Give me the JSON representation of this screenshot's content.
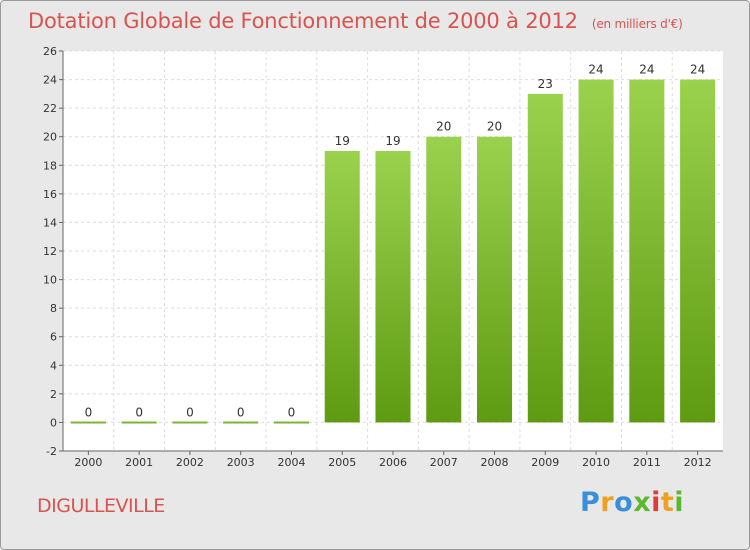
{
  "title": "Dotation Globale de Fonctionnement de 2000 à 2012",
  "subtitle": "(en milliers d'€)",
  "commune": "DIGULLEVILLE",
  "logo": {
    "letters": [
      "P",
      "r",
      "o",
      "x",
      "i",
      "t",
      "i"
    ]
  },
  "colors": {
    "accent": "#d9534f",
    "bar_top": "#9ad24e",
    "bar_bottom": "#5e9a12",
    "background": "#e8e8e8",
    "plot_background": "#ffffff"
  },
  "chart_data": {
    "type": "bar",
    "categories": [
      "2000",
      "2001",
      "2002",
      "2003",
      "2004",
      "2005",
      "2006",
      "2007",
      "2008",
      "2009",
      "2010",
      "2011",
      "2012"
    ],
    "values": [
      0,
      0,
      0,
      0,
      0,
      19,
      19,
      20,
      20,
      23,
      24,
      24,
      24
    ],
    "value_labels": [
      "0",
      "0",
      "0",
      "0",
      "0",
      "19",
      "19",
      "20",
      "20",
      "23",
      "24",
      "24",
      "24"
    ],
    "yticks": [
      "-2",
      "0",
      "2",
      "4",
      "6",
      "8",
      "10",
      "12",
      "14",
      "16",
      "18",
      "20",
      "22",
      "24",
      "26"
    ],
    "title": "Dotation Globale de Fonctionnement de 2000 à 2012",
    "xlabel": "",
    "ylabel": "",
    "ylim": [
      -2,
      26
    ],
    "grid": true,
    "legend": "none"
  }
}
